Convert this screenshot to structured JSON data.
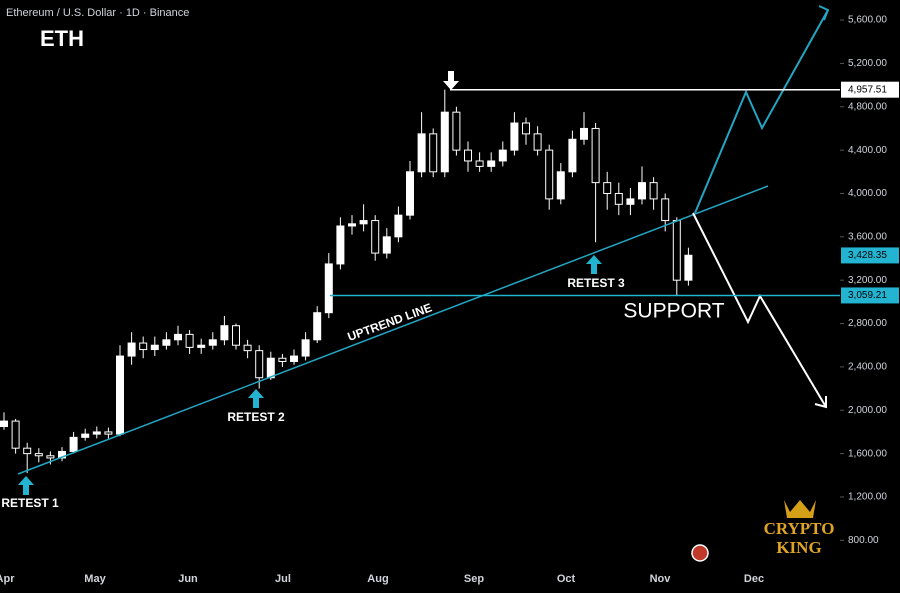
{
  "header": "Ethereum / U.S. Dollar · 1D · Binance",
  "symbol": "ETH",
  "chart_data": {
    "type": "candlestick",
    "open": [
      1850,
      1900,
      1650,
      1600,
      1580,
      1560,
      1620,
      1750,
      1780,
      1800,
      1780,
      2500,
      2620,
      2560,
      2600,
      2650,
      2700,
      2580,
      2600,
      2650,
      2780,
      2600,
      2550,
      2300,
      2480,
      2450,
      2500,
      2650,
      2900,
      3350,
      3700,
      3720,
      3750,
      3450,
      3600,
      3800,
      4200,
      4550,
      4200,
      4750,
      4400,
      4300,
      4250,
      4300,
      4400,
      4650,
      4550,
      4400,
      3950,
      4200,
      4500,
      4600,
      4100,
      4000,
      3900,
      3950,
      4100,
      3950,
      3750,
      3200
    ],
    "high": [
      1980,
      1920,
      1700,
      1650,
      1620,
      1660,
      1800,
      1830,
      1850,
      1840,
      2600,
      2720,
      2680,
      2680,
      2720,
      2780,
      2740,
      2660,
      2720,
      2870,
      2800,
      2650,
      2600,
      2540,
      2520,
      2560,
      2720,
      2960,
      3450,
      3780,
      3800,
      3900,
      3800,
      3680,
      3880,
      4300,
      4750,
      4600,
      4957.51,
      4800,
      4480,
      4380,
      4380,
      4480,
      4750,
      4700,
      4620,
      4450,
      4280,
      4580,
      4750,
      4650,
      4200,
      4100,
      4050,
      4250,
      4150,
      4000,
      3780,
      3500
    ],
    "low": [
      1820,
      1600,
      1420,
      1520,
      1500,
      1530,
      1600,
      1720,
      1740,
      1740,
      1760,
      2420,
      2480,
      2500,
      2560,
      2600,
      2520,
      2520,
      2560,
      2600,
      2560,
      2480,
      2200,
      2280,
      2400,
      2420,
      2460,
      2620,
      2850,
      3300,
      3620,
      3650,
      3380,
      3400,
      3550,
      3760,
      4150,
      4150,
      4150,
      4350,
      4200,
      4200,
      4200,
      4250,
      4350,
      4450,
      4350,
      3850,
      3900,
      4150,
      4450,
      3550,
      3850,
      3800,
      3800,
      3900,
      3850,
      3650,
      3060,
      3150
    ],
    "close": [
      1900,
      1650,
      1600,
      1580,
      1560,
      1620,
      1750,
      1780,
      1800,
      1780,
      2500,
      2620,
      2560,
      2600,
      2650,
      2700,
      2580,
      2600,
      2650,
      2780,
      2600,
      2550,
      2300,
      2480,
      2450,
      2500,
      2650,
      2900,
      3350,
      3700,
      3720,
      3750,
      3450,
      3600,
      3800,
      4200,
      4550,
      4200,
      4750,
      4400,
      4300,
      4250,
      4300,
      4400,
      4650,
      4550,
      4400,
      3950,
      4200,
      4500,
      4600,
      4100,
      4000,
      3900,
      3950,
      4100,
      3950,
      3750,
      3200,
      3430
    ],
    "up_color": "#ffffff",
    "down_color": "#000000",
    "categories_months": [
      "Apr",
      "May",
      "Jun",
      "Jul",
      "Aug",
      "Sep",
      "Oct",
      "Nov",
      "Dec"
    ],
    "ylim": [
      600,
      5785
    ],
    "yticks": [
      {
        "value": 800,
        "label": "800.00"
      },
      {
        "value": 1200,
        "label": "1,200.00"
      },
      {
        "value": 1600,
        "label": "1,600.00"
      },
      {
        "value": 2000,
        "label": "2,000.00"
      },
      {
        "value": 2400,
        "label": "2,400.00"
      },
      {
        "value": 2800,
        "label": "2,800.00"
      },
      {
        "value": 3200,
        "label": "3,200.00"
      },
      {
        "value": 3600,
        "label": "3,600.00"
      },
      {
        "value": 4000,
        "label": "4,000.00"
      },
      {
        "value": 4400,
        "label": "4,400.00"
      },
      {
        "value": 4800,
        "label": "4,800.00"
      },
      {
        "value": 5200,
        "label": "5,200.00"
      },
      {
        "value": 5600,
        "label": "5,600.00"
      }
    ],
    "price_lines": [
      {
        "value": 4957.51,
        "label": "4,957.51",
        "color": "#ffffff"
      },
      {
        "value": 3428.35,
        "label": "3,428.35",
        "color": "#22b4d0"
      },
      {
        "value": 3059.21,
        "label": "3,059.21",
        "color": "#22b4d0"
      }
    ],
    "annotations": {
      "trend": "UPTREND LINE",
      "retest1": "RETEST 1",
      "retest2": "RETEST 2",
      "retest3": "RETEST 3",
      "support": "SUPPORT"
    },
    "watermark": [
      "CRYPTO",
      "KING"
    ]
  }
}
